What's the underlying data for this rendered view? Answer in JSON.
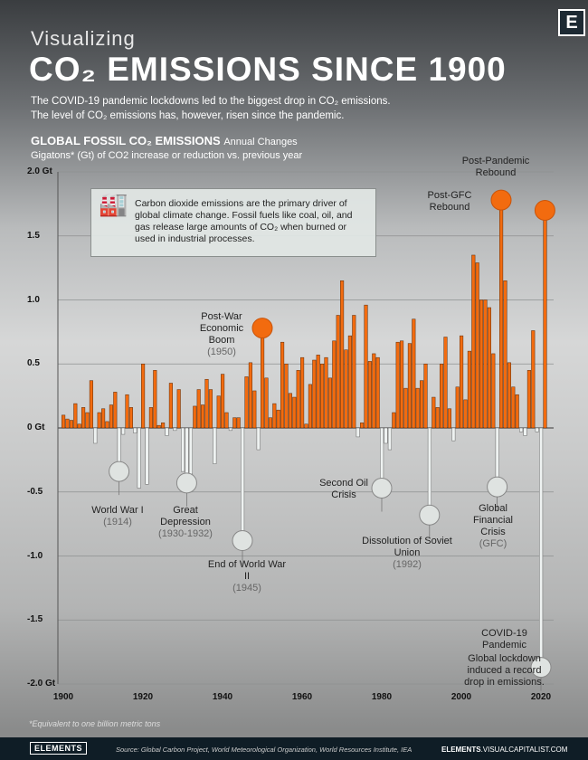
{
  "header": {
    "kicker": "Visualizing",
    "title": "CO₂ EMISSIONS SINCE 1900",
    "logo": "E",
    "subtitle_1": "The COVID-19 pandemic lockdowns led to the biggest drop in CO₂ emissions.",
    "subtitle_2": "The level of CO₂ emissions has, however, risen since the pandemic."
  },
  "chart_data": {
    "type": "bar",
    "title": "GLOBAL FOSSIL CO₂ EMISSIONS",
    "title_suffix": "Annual Changes",
    "subtitle": "Gigatons* (Gt) of CO2 increase or reduction vs. previous year",
    "x_start": 1900,
    "ylim": [
      -2.0,
      2.0
    ],
    "yticks": [
      "2.0 Gt",
      "1.5",
      "1.0",
      "0.5",
      "0 Gt",
      "-0.5",
      "-1.0",
      "-1.5",
      "-2.0 Gt"
    ],
    "xticks": [
      "1900",
      "1920",
      "1940",
      "1960",
      "1980",
      "2000",
      "2020"
    ],
    "grid": true,
    "colors": {
      "increase": "#f26b0f",
      "decrease": "#eef2f1"
    },
    "values": [
      0.1,
      0.07,
      0.06,
      0.19,
      0.03,
      0.16,
      0.12,
      0.37,
      -0.12,
      0.12,
      0.15,
      0.05,
      0.18,
      0.28,
      -0.34,
      -0.05,
      0.26,
      0.16,
      -0.04,
      -0.47,
      0.5,
      -0.44,
      0.16,
      0.45,
      0.02,
      0.04,
      -0.06,
      0.35,
      -0.02,
      0.3,
      -0.34,
      -0.43,
      -0.36,
      0.17,
      0.3,
      0.18,
      0.38,
      0.3,
      -0.28,
      0.25,
      0.42,
      0.12,
      -0.02,
      0.08,
      0.08,
      -0.88,
      0.4,
      0.51,
      0.29,
      -0.17,
      0.78,
      0.39,
      0.08,
      0.19,
      0.14,
      0.67,
      0.5,
      0.27,
      0.24,
      0.45,
      0.55,
      0.03,
      0.34,
      0.53,
      0.57,
      0.5,
      0.55,
      0.39,
      0.68,
      0.88,
      1.15,
      0.61,
      0.72,
      0.88,
      -0.07,
      0.04,
      0.96,
      0.52,
      0.58,
      0.55,
      -0.47,
      -0.12,
      -0.17,
      0.12,
      0.67,
      0.68,
      0.31,
      0.66,
      0.85,
      0.31,
      0.37,
      0.5,
      -0.68,
      0.24,
      0.16,
      0.5,
      0.71,
      0.15,
      -0.1,
      0.32,
      0.72,
      0.22,
      0.6,
      1.35,
      1.29,
      1.0,
      1.0,
      0.94,
      0.58,
      -0.46,
      1.78,
      1.15,
      0.51,
      0.32,
      0.26,
      -0.03,
      -0.06,
      0.45,
      0.76,
      -0.03,
      -1.87,
      1.7
    ],
    "annotations": [
      {
        "year": 1914,
        "label": "World War I",
        "year_label": "(1914)"
      },
      {
        "year": 1931,
        "label": "Great Depression",
        "year_label": "(1930-1932)"
      },
      {
        "year": 1945,
        "label": "End of World War II",
        "year_label": "(1945)"
      },
      {
        "year": 1950,
        "label": "Post-War Economic Boom",
        "year_label": "(1950)"
      },
      {
        "year": 1980,
        "label": "Second Oil Crisis",
        "year_label": ""
      },
      {
        "year": 1992,
        "label": "Dissolution of Soviet Union",
        "year_label": "(1992)"
      },
      {
        "year": 2009,
        "label": "Global Financial Crisis",
        "year_label": "(GFC)"
      },
      {
        "year": 2010,
        "label": "Post-GFC Rebound",
        "year_label": ""
      },
      {
        "year": 2020,
        "label": "COVID-19 Pandemic",
        "year_label": "",
        "note": "Global lockdown induced a record drop in emissions."
      },
      {
        "year": 2021,
        "label": "Post-Pandemic Rebound",
        "year_label": ""
      }
    ]
  },
  "info_box": "Carbon dioxide emissions are the primary driver of global climate change. Fossil fuels like coal, oil, and gas release large amounts of CO₂ when burned or used in industrial processes.",
  "footnote": "*Equivalent to one billion metric tons",
  "footer": {
    "logo": "ELEMENTS",
    "source": "Source: Global Carbon Project, World Meteorological Organization, World Resources Institute, IEA",
    "site_bold": "ELEMENTS",
    "site_rest": ".VISUALCAPITALIST.COM"
  }
}
